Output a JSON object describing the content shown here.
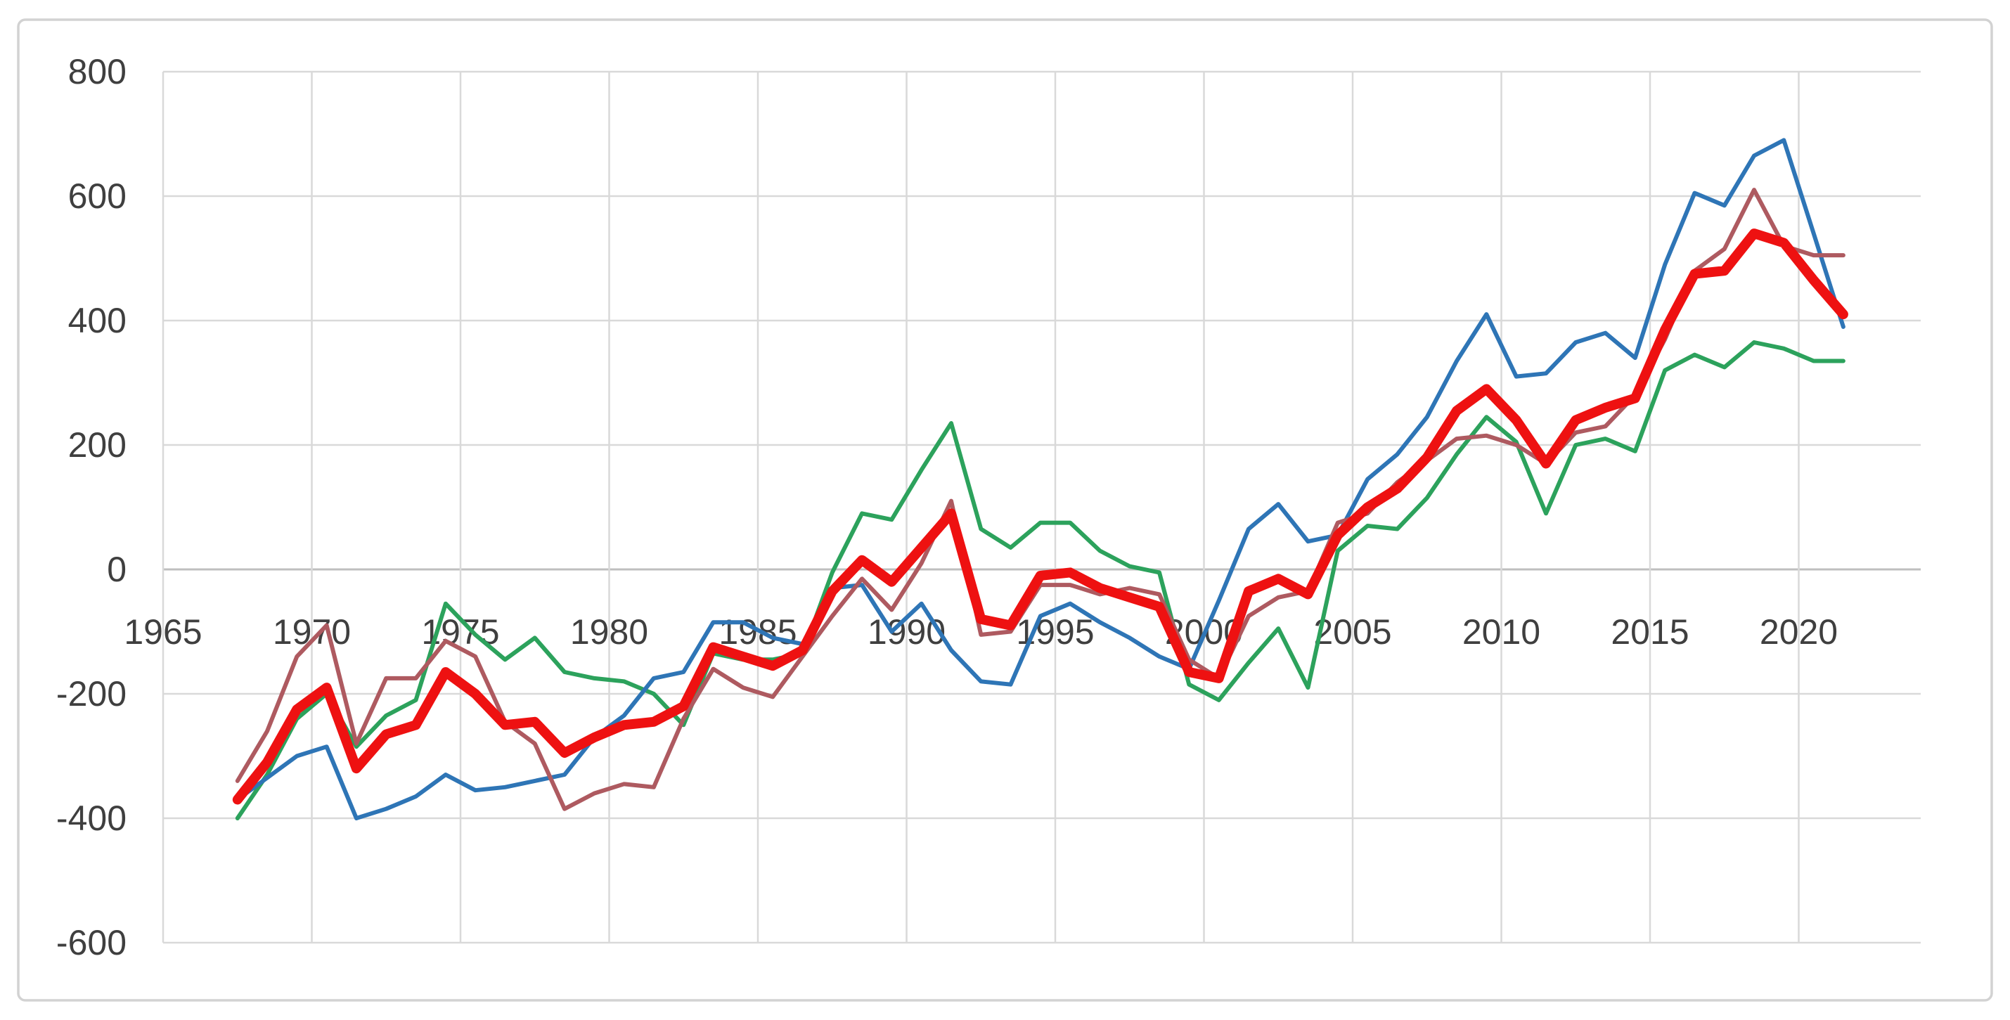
{
  "chart": {
    "background_color": "#ffffff",
    "border_color": "#d2d2d2",
    "gridline_color": "#d9d9d9",
    "zero_line_color": "#bfbfbf",
    "label_color": "#3f3f3f",
    "x_tick_labels": [
      "1965",
      "1970",
      "1975",
      "1980",
      "1985",
      "1990",
      "1995",
      "2000",
      "2005",
      "2010",
      "2015",
      "2020"
    ],
    "y_tick_labels": [
      "800",
      "600",
      "400",
      "200",
      "0",
      "-200",
      "-400",
      "-600"
    ]
  },
  "chart_data": {
    "type": "line",
    "title": "",
    "xlabel": "",
    "ylabel": "",
    "grid": true,
    "legend": "none",
    "xlim": [
      1964.75,
      2024.1
    ],
    "ylim": [
      -600,
      800
    ],
    "x_ticks": [
      1965,
      1970,
      1975,
      1980,
      1985,
      1990,
      1995,
      2000,
      2005,
      2010,
      2015,
      2020
    ],
    "y_ticks": [
      800,
      600,
      400,
      200,
      0,
      -200,
      -400,
      -600
    ],
    "x": [
      1967,
      1968,
      1969,
      1970,
      1971,
      1972,
      1973,
      1974,
      1975,
      1976,
      1977,
      1978,
      1979,
      1980,
      1981,
      1982,
      1983,
      1984,
      1985,
      1986,
      1987,
      1988,
      1989,
      1990,
      1991,
      1992,
      1993,
      1994,
      1995,
      1996,
      1997,
      1998,
      1999,
      2000,
      2001,
      2002,
      2003,
      2004,
      2005,
      2006,
      2007,
      2008,
      2009,
      2010,
      2011,
      2012,
      2013,
      2014,
      2015,
      2016,
      2017,
      2018,
      2019,
      2020,
      2021
    ],
    "series": [
      {
        "name": "green-line",
        "color": "#2ca25c",
        "stroke_width": 6,
        "values": [
          -400,
          -330,
          -240,
          -200,
          -285,
          -235,
          -210,
          -55,
          -105,
          -145,
          -110,
          -165,
          -175,
          -180,
          -200,
          -250,
          -135,
          -145,
          -145,
          -135,
          -5,
          90,
          80,
          160,
          235,
          65,
          35,
          75,
          75,
          30,
          5,
          -5,
          -185,
          -210,
          -150,
          -95,
          -190,
          30,
          70,
          65,
          115,
          185,
          245,
          205,
          90,
          200,
          210,
          190,
          320,
          345,
          325,
          365,
          355,
          335,
          335
        ]
      },
      {
        "name": "blue-line",
        "color": "#2e75b6",
        "stroke_width": 6,
        "values": [
          -370,
          -335,
          -300,
          -285,
          -400,
          -385,
          -365,
          -330,
          -355,
          -350,
          -340,
          -330,
          -270,
          -235,
          -175,
          -165,
          -85,
          -85,
          -110,
          -120,
          -30,
          -25,
          -100,
          -55,
          -130,
          -180,
          -185,
          -75,
          -55,
          -85,
          -110,
          -140,
          -160,
          -50,
          65,
          105,
          45,
          55,
          145,
          185,
          245,
          335,
          410,
          310,
          315,
          365,
          380,
          340,
          490,
          605,
          585,
          665,
          690,
          540,
          390
        ]
      },
      {
        "name": "dark-red-line",
        "color": "#ae5a60",
        "stroke_width": 6,
        "values": [
          -340,
          -260,
          -140,
          -90,
          -280,
          -175,
          -175,
          -115,
          -140,
          -245,
          -280,
          -385,
          -360,
          -345,
          -350,
          -240,
          -160,
          -190,
          -205,
          -140,
          -75,
          -15,
          -65,
          10,
          110,
          -105,
          -100,
          -25,
          -25,
          -40,
          -30,
          -40,
          -145,
          -175,
          -75,
          -45,
          -35,
          75,
          90,
          140,
          175,
          210,
          215,
          200,
          170,
          220,
          230,
          280,
          370,
          480,
          515,
          610,
          520,
          505,
          505
        ]
      },
      {
        "name": "bold-red-line",
        "color": "#ee1111",
        "stroke_width": 14,
        "values": [
          -370,
          -310,
          -225,
          -190,
          -320,
          -265,
          -250,
          -165,
          -200,
          -250,
          -245,
          -295,
          -270,
          -250,
          -245,
          -220,
          -125,
          -140,
          -155,
          -130,
          -35,
          15,
          -20,
          35,
          90,
          -80,
          -90,
          -10,
          -5,
          -30,
          -45,
          -60,
          -165,
          -175,
          -35,
          -15,
          -40,
          55,
          100,
          130,
          180,
          255,
          290,
          240,
          170,
          240,
          260,
          275,
          385,
          475,
          480,
          540,
          525,
          465,
          410
        ]
      }
    ]
  }
}
